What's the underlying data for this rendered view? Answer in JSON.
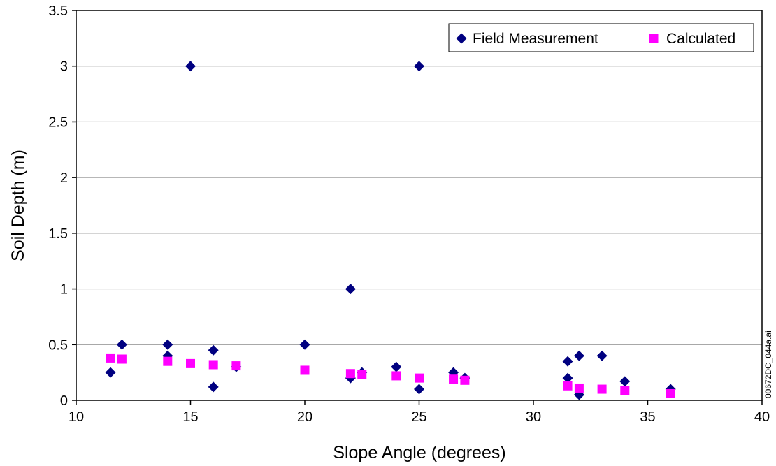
{
  "chart_data": {
    "type": "scatter",
    "xlabel": "Slope Angle (degrees)",
    "ylabel": "Soil Depth (m)",
    "xlim": [
      10,
      40
    ],
    "ylim": [
      0,
      3.5
    ],
    "x_ticks": [
      "10",
      "15",
      "20",
      "25",
      "30",
      "35",
      "40"
    ],
    "y_ticks": [
      "0",
      "0.5",
      "1",
      "1.5",
      "2",
      "2.5",
      "3",
      "3.5"
    ],
    "grid": "horizontal",
    "legend_position": "top-right",
    "series": [
      {
        "name": "Field Measurement",
        "marker": "diamond",
        "color": "#000080",
        "points": [
          [
            11.5,
            0.25
          ],
          [
            12,
            0.5
          ],
          [
            14,
            0.5
          ],
          [
            14,
            0.4
          ],
          [
            15,
            3.0
          ],
          [
            16,
            0.45
          ],
          [
            16,
            0.12
          ],
          [
            17,
            0.3
          ],
          [
            20,
            0.5
          ],
          [
            22,
            1.0
          ],
          [
            22,
            0.2
          ],
          [
            22.5,
            0.25
          ],
          [
            24,
            0.3
          ],
          [
            25,
            3.0
          ],
          [
            25,
            0.1
          ],
          [
            26.5,
            0.25
          ],
          [
            27,
            0.2
          ],
          [
            31.5,
            0.35
          ],
          [
            31.5,
            0.2
          ],
          [
            32,
            0.4
          ],
          [
            32,
            0.05
          ],
          [
            33,
            0.4
          ],
          [
            34,
            0.17
          ],
          [
            36,
            0.1
          ]
        ]
      },
      {
        "name": "Calculated",
        "marker": "square",
        "color": "#FF00FF",
        "points": [
          [
            11.5,
            0.38
          ],
          [
            12,
            0.37
          ],
          [
            14,
            0.35
          ],
          [
            15,
            0.33
          ],
          [
            16,
            0.32
          ],
          [
            17,
            0.31
          ],
          [
            20,
            0.27
          ],
          [
            22,
            0.24
          ],
          [
            22.5,
            0.23
          ],
          [
            24,
            0.22
          ],
          [
            25,
            0.2
          ],
          [
            26.5,
            0.19
          ],
          [
            27,
            0.18
          ],
          [
            31.5,
            0.13
          ],
          [
            32,
            0.11
          ],
          [
            33,
            0.1
          ],
          [
            34,
            0.09
          ],
          [
            36,
            0.06
          ]
        ]
      }
    ]
  },
  "side_note": "00672DC_044a.ai"
}
